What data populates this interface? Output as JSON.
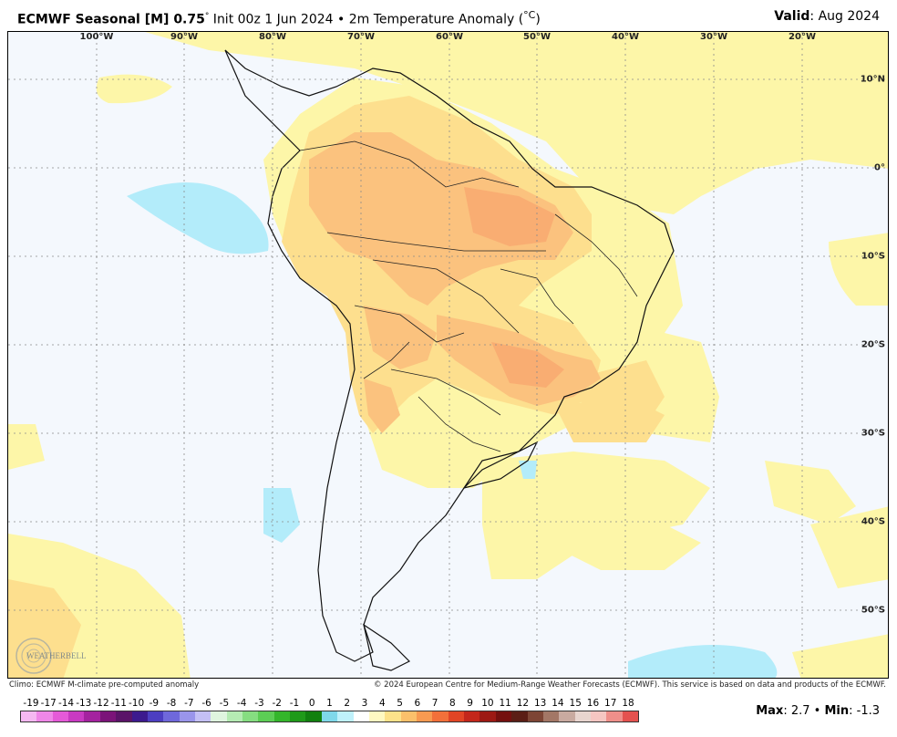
{
  "header": {
    "title_bold": "ECMWF Seasonal [M] 0.75",
    "title_deg": "°",
    "title_rest": " Init 00z 1 Jun 2024 • 2m Temperature Anomaly (",
    "title_unit": "°C",
    "title_close": ")",
    "valid_label": "Valid",
    "valid_value": ": Aug 2024"
  },
  "map": {
    "lon_labels": [
      "100°W",
      "90°W",
      "80°W",
      "70°W",
      "60°W",
      "50°W",
      "40°W",
      "30°W",
      "20°W"
    ],
    "lat_labels": [
      "10°N",
      "0°",
      "10°S",
      "20°S",
      "30°S",
      "40°S",
      "50°S"
    ],
    "ocean_color": "#f4f8fd",
    "land_color": "#ffffff",
    "anomaly_0_1_color": "#fdf6a8",
    "anomaly_1_2_color": "#fddf8e",
    "anomaly_2_3_color": "#fbc27e",
    "anomaly_3_color": "#f9ad72",
    "cool_color": "#b3ecfa"
  },
  "footer": {
    "left": "Climo: ECMWF M-climate pre-computed anomaly",
    "right": "© 2024 European Centre for Medium-Range Weather Forecasts (ECMWF). This service is based on data and products of the ECMWF."
  },
  "colorbar": {
    "ticks": [
      "-19",
      "-17",
      "-14",
      "-13",
      "-12",
      "-11",
      "-10",
      "-9",
      "-8",
      "-7",
      "-6",
      "-5",
      "-4",
      "-3",
      "-2",
      "-1",
      "0",
      "1",
      "2",
      "3",
      "4",
      "5",
      "6",
      "7",
      "8",
      "9",
      "10",
      "11",
      "12",
      "13",
      "14",
      "15",
      "16",
      "17",
      "18"
    ],
    "colors": [
      "#f5b8f1",
      "#ef87e8",
      "#e55ad8",
      "#c93ac2",
      "#a4229f",
      "#7b1479",
      "#5a1468",
      "#3c1a8e",
      "#4c3ec1",
      "#6f68db",
      "#9a95eb",
      "#c4c0f5",
      "#dff5df",
      "#b5ebb3",
      "#86dd81",
      "#5ccd55",
      "#34b62b",
      "#1f9a19",
      "#11800f",
      "#7fd8ea",
      "#bff1fb",
      "#ffffff",
      "#fff9c2",
      "#fde28a",
      "#fbc06b",
      "#f79a51",
      "#f2703a",
      "#e14525",
      "#c3271b",
      "#9d1914",
      "#74100f",
      "#5b1e16",
      "#7d4535",
      "#a37766",
      "#c9aaa0",
      "#e8d5cf",
      "#f6c6c2",
      "#ef8f8a",
      "#e4524f"
    ],
    "max_label": "Max",
    "max_value": ": 2.7 • ",
    "min_label": "Min",
    "min_value": ": -1.3"
  },
  "logo": {
    "text": "WEATHERBELL"
  }
}
